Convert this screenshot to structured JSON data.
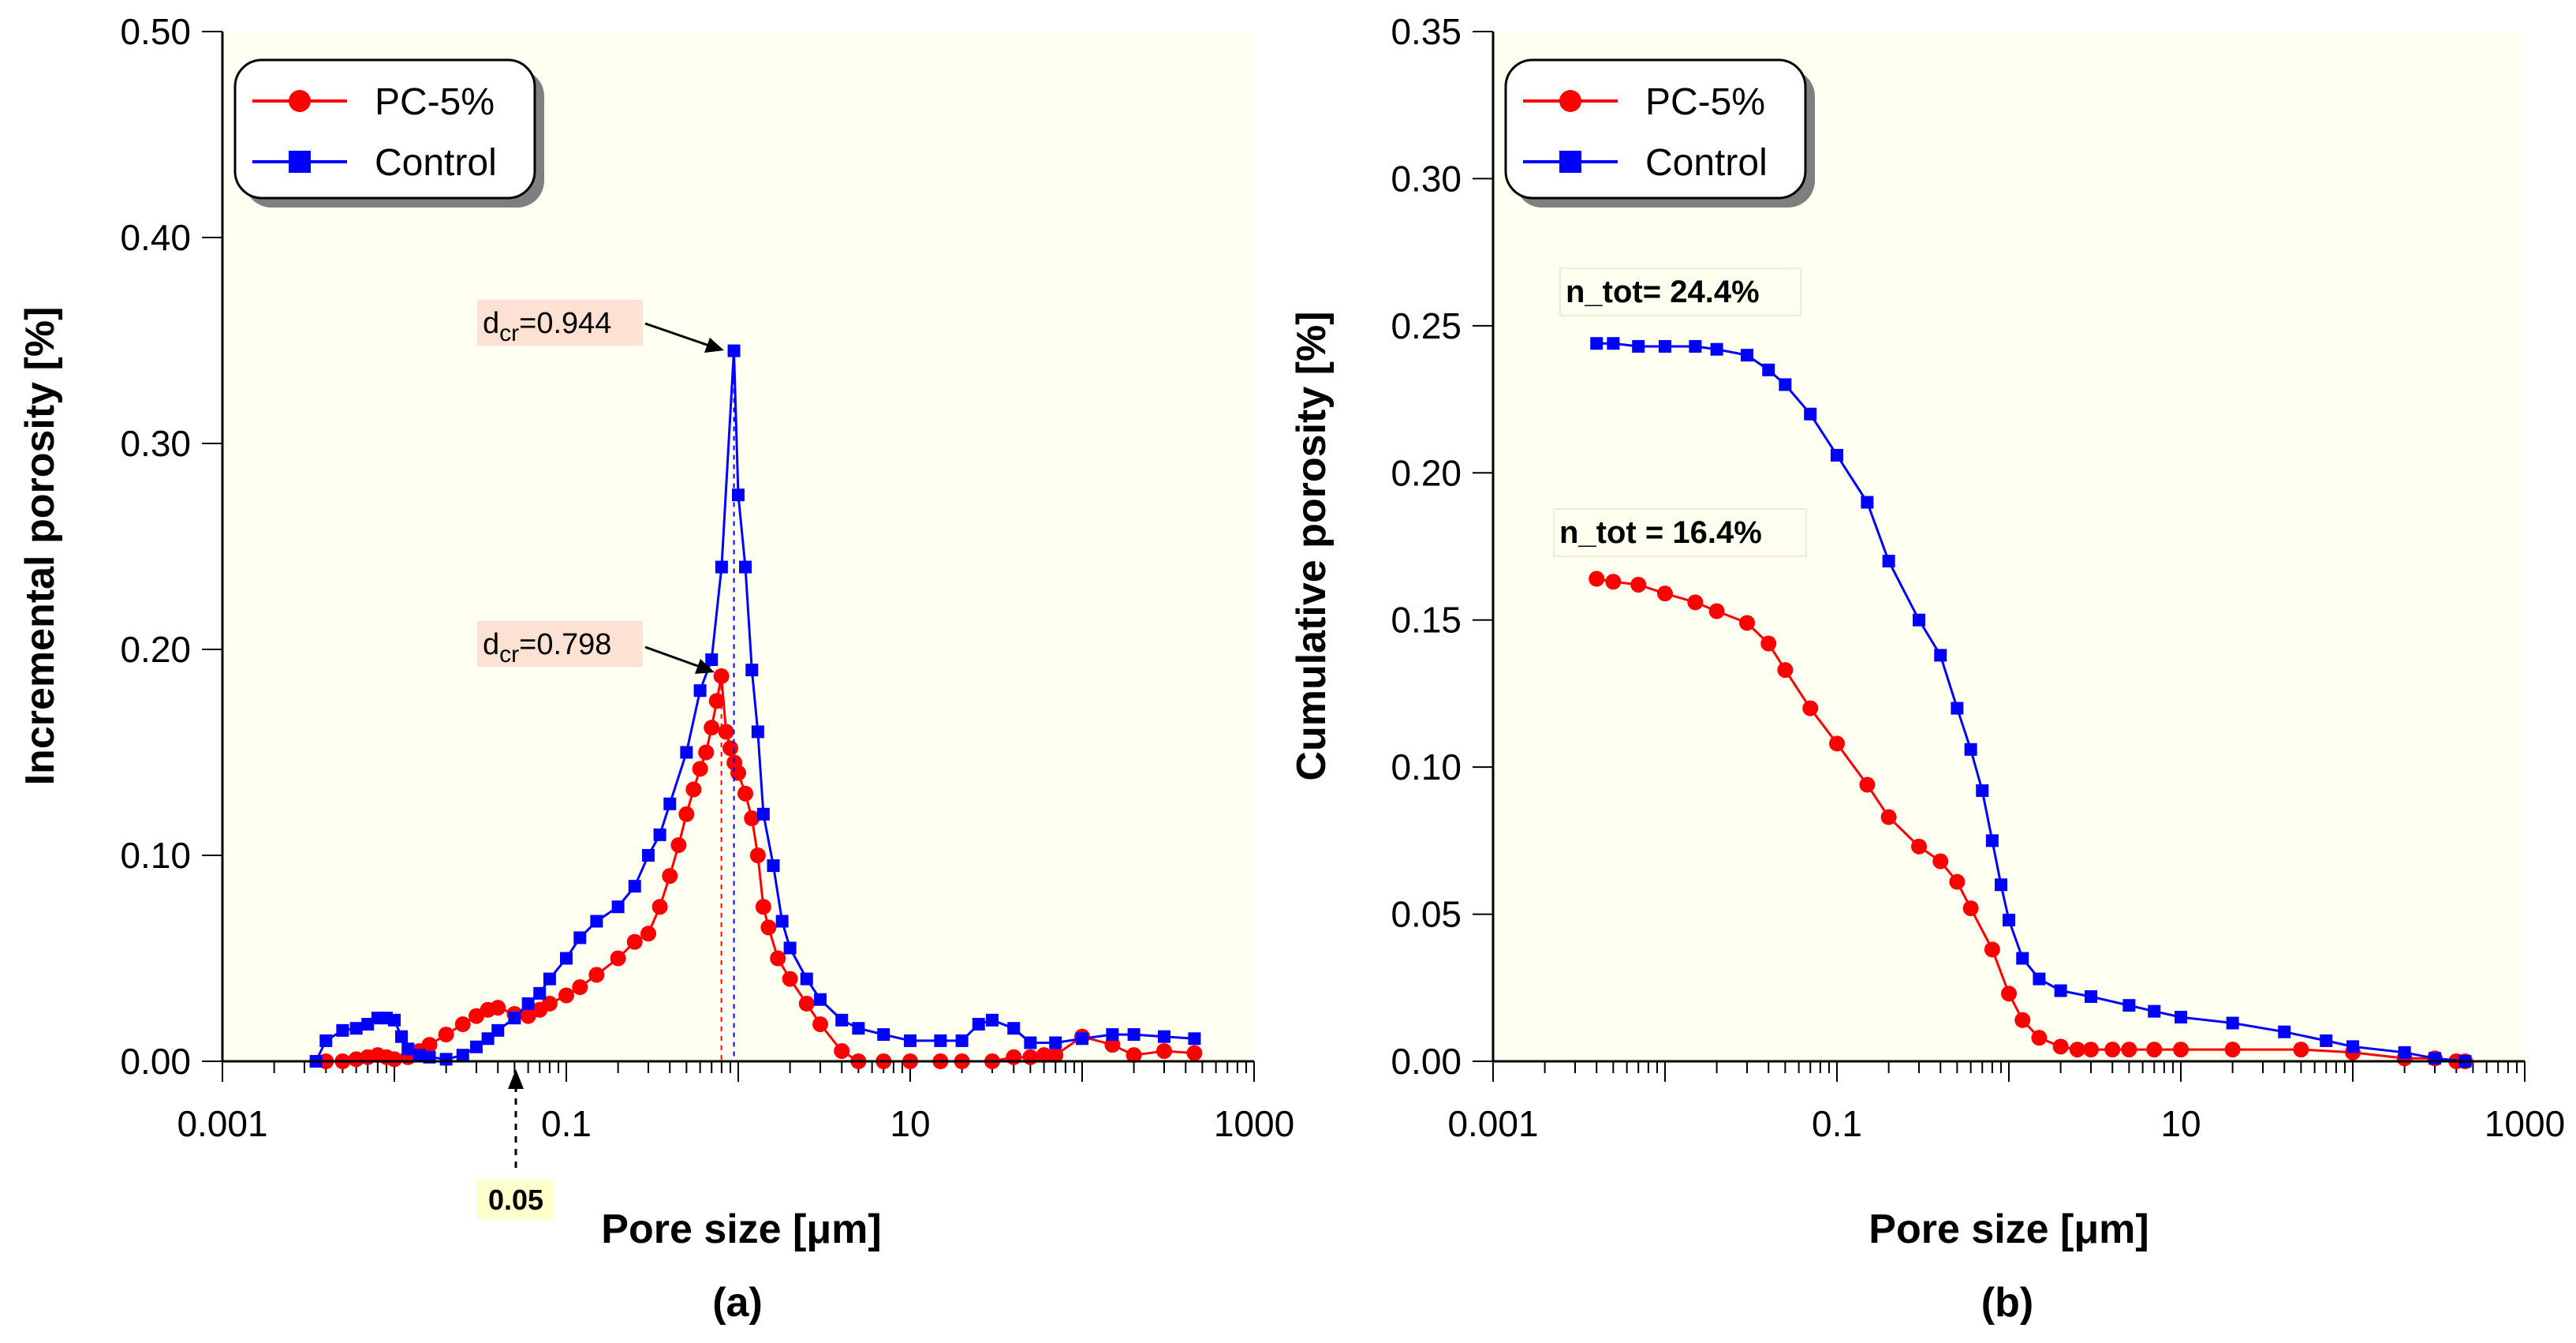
{
  "chart_data": [
    {
      "type": "line",
      "panel_label": "(a)",
      "title": "",
      "xlabel": "Pore size [μm]",
      "ylabel": "Incremental porosity [%]",
      "xscale": "log",
      "xlim": [
        0.001,
        1000
      ],
      "ylim": [
        0,
        0.5
      ],
      "x_tick_labels": [
        "0.001",
        "0.1",
        "10",
        "1000"
      ],
      "y_tick_labels": [
        "0.00",
        "0.10",
        "0.20",
        "0.30",
        "0.40",
        "0.50"
      ],
      "legend_position": "top-left",
      "series": [
        {
          "name": "PC-5%",
          "color": "#ff0000",
          "marker": "circle",
          "x": [
            0.004,
            0.005,
            0.006,
            0.007,
            0.008,
            0.009,
            0.01,
            0.012,
            0.014,
            0.016,
            0.02,
            0.025,
            0.03,
            0.035,
            0.04,
            0.05,
            0.06,
            0.07,
            0.08,
            0.1,
            0.12,
            0.15,
            0.2,
            0.25,
            0.3,
            0.35,
            0.4,
            0.45,
            0.5,
            0.55,
            0.6,
            0.65,
            0.7,
            0.75,
            0.798,
            0.85,
            0.9,
            0.95,
            1.0,
            1.1,
            1.2,
            1.3,
            1.4,
            1.5,
            1.7,
            2.0,
            2.5,
            3.0,
            4.0,
            5.0,
            7,
            10,
            15,
            20,
            30,
            40,
            50,
            60,
            70,
            100,
            150,
            200,
            300,
            450
          ],
          "y": [
            0.0,
            0.0,
            0.001,
            0.002,
            0.003,
            0.002,
            0.001,
            0.002,
            0.005,
            0.008,
            0.013,
            0.018,
            0.022,
            0.025,
            0.026,
            0.023,
            0.022,
            0.025,
            0.028,
            0.032,
            0.036,
            0.042,
            0.05,
            0.058,
            0.062,
            0.075,
            0.09,
            0.105,
            0.12,
            0.132,
            0.142,
            0.15,
            0.162,
            0.175,
            0.187,
            0.16,
            0.152,
            0.145,
            0.14,
            0.13,
            0.118,
            0.1,
            0.075,
            0.065,
            0.05,
            0.04,
            0.028,
            0.018,
            0.005,
            0.0,
            0.0,
            0.0,
            0.0,
            0.0,
            0.0,
            0.002,
            0.002,
            0.003,
            0.003,
            0.012,
            0.008,
            0.003,
            0.005,
            0.004
          ]
        },
        {
          "name": "Control",
          "color": "#0000ff",
          "marker": "square",
          "x": [
            0.0035,
            0.004,
            0.005,
            0.006,
            0.007,
            0.008,
            0.009,
            0.01,
            0.011,
            0.012,
            0.014,
            0.016,
            0.02,
            0.025,
            0.03,
            0.035,
            0.04,
            0.05,
            0.06,
            0.07,
            0.08,
            0.1,
            0.12,
            0.15,
            0.2,
            0.25,
            0.3,
            0.35,
            0.4,
            0.5,
            0.6,
            0.7,
            0.8,
            0.944,
            1.0,
            1.1,
            1.2,
            1.3,
            1.4,
            1.6,
            1.8,
            2.0,
            2.5,
            3.0,
            4.0,
            5.0,
            7,
            10,
            15,
            20,
            25,
            30,
            40,
            50,
            70,
            100,
            150,
            200,
            300,
            450
          ],
          "y": [
            0.0,
            0.01,
            0.015,
            0.016,
            0.018,
            0.021,
            0.021,
            0.02,
            0.012,
            0.006,
            0.003,
            0.002,
            0.001,
            0.003,
            0.007,
            0.011,
            0.015,
            0.021,
            0.028,
            0.033,
            0.04,
            0.05,
            0.06,
            0.068,
            0.075,
            0.085,
            0.1,
            0.11,
            0.125,
            0.15,
            0.18,
            0.195,
            0.24,
            0.345,
            0.275,
            0.24,
            0.19,
            0.16,
            0.12,
            0.095,
            0.068,
            0.055,
            0.04,
            0.03,
            0.02,
            0.016,
            0.013,
            0.01,
            0.01,
            0.01,
            0.018,
            0.02,
            0.016,
            0.009,
            0.009,
            0.011,
            0.013,
            0.013,
            0.012,
            0.011
          ]
        }
      ],
      "annotations": [
        {
          "label": "d",
          "subscript": "cr",
          "value": "=0.944",
          "target_x": 0.944,
          "target_y": 0.345
        },
        {
          "label": "d",
          "subscript": "cr",
          "value": "=0.798",
          "target_x": 0.798,
          "target_y": 0.187
        },
        {
          "label": "0.05",
          "target_x": 0.05,
          "target_y": 0.0
        }
      ]
    },
    {
      "type": "line",
      "panel_label": "(b)",
      "title": "",
      "xlabel": "Pore size [μm]",
      "ylabel": "Cumulative porosity [%]",
      "xscale": "log",
      "xlim": [
        0.001,
        1000
      ],
      "ylim": [
        0,
        0.35
      ],
      "x_tick_labels": [
        "0.001",
        "0.1",
        "10",
        "1000"
      ],
      "y_tick_labels": [
        "0.00",
        "0.05",
        "0.10",
        "0.15",
        "0.20",
        "0.25",
        "0.30",
        "0.35"
      ],
      "legend_position": "top-left",
      "series": [
        {
          "name": "PC-5%",
          "color": "#ff0000",
          "marker": "circle",
          "x": [
            0.004,
            0.005,
            0.007,
            0.01,
            0.015,
            0.02,
            0.03,
            0.04,
            0.05,
            0.07,
            0.1,
            0.15,
            0.2,
            0.3,
            0.4,
            0.5,
            0.6,
            0.8,
            1.0,
            1.2,
            1.5,
            2.0,
            2.5,
            3.0,
            4.0,
            5.0,
            7,
            10,
            20,
            50,
            100,
            200,
            300,
            400,
            450
          ],
          "y": [
            0.164,
            0.163,
            0.162,
            0.159,
            0.156,
            0.153,
            0.149,
            0.142,
            0.133,
            0.12,
            0.108,
            0.094,
            0.083,
            0.073,
            0.068,
            0.061,
            0.052,
            0.038,
            0.023,
            0.014,
            0.008,
            0.005,
            0.004,
            0.004,
            0.004,
            0.004,
            0.004,
            0.004,
            0.004,
            0.004,
            0.003,
            0.001,
            0.001,
            0.0,
            0.0
          ]
        },
        {
          "name": "Control",
          "color": "#0000ff",
          "marker": "square",
          "x": [
            0.004,
            0.005,
            0.007,
            0.01,
            0.015,
            0.02,
            0.03,
            0.04,
            0.05,
            0.07,
            0.1,
            0.15,
            0.2,
            0.3,
            0.4,
            0.5,
            0.6,
            0.7,
            0.8,
            0.9,
            1.0,
            1.2,
            1.5,
            2.0,
            3.0,
            5.0,
            7,
            10,
            20,
            40,
            70,
            100,
            200,
            300,
            450
          ],
          "y": [
            0.244,
            0.244,
            0.243,
            0.243,
            0.243,
            0.242,
            0.24,
            0.235,
            0.23,
            0.22,
            0.206,
            0.19,
            0.17,
            0.15,
            0.138,
            0.12,
            0.106,
            0.092,
            0.075,
            0.06,
            0.048,
            0.035,
            0.028,
            0.024,
            0.022,
            0.019,
            0.017,
            0.015,
            0.013,
            0.01,
            0.007,
            0.005,
            0.003,
            0.001,
            0.0
          ]
        }
      ],
      "annotations": [
        {
          "label": "n_tot= 24.4%",
          "target_x": 0.004,
          "target_y": 0.244
        },
        {
          "label": "n_tot = 16.4%",
          "target_x": 0.004,
          "target_y": 0.164
        }
      ]
    }
  ]
}
